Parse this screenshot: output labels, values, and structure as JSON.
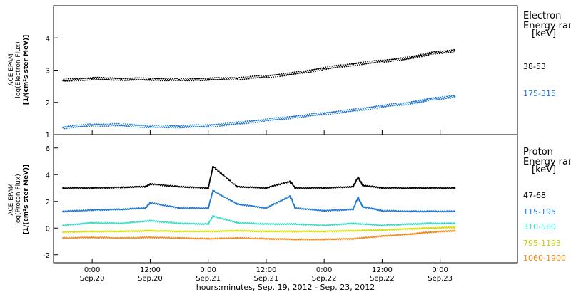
{
  "chart_data": [
    {
      "panel": "electron",
      "type": "scatter",
      "ylabel": [
        "ACE EPAM",
        "log(Electron Flux)",
        "[1/(cm²s ster MeV)]"
      ],
      "ylim": [
        1,
        5
      ],
      "yticks": [
        1,
        2,
        3,
        4
      ],
      "legend_title": [
        "Electron",
        "Energy ran",
        "[keV]"
      ],
      "series": [
        {
          "name": "38-53",
          "color": "#000000",
          "x": [
            -6,
            0,
            6,
            12,
            18,
            24,
            30,
            36,
            42,
            48,
            54,
            60,
            66,
            70,
            75
          ],
          "y": [
            2.68,
            2.74,
            2.72,
            2.72,
            2.7,
            2.72,
            2.74,
            2.8,
            2.9,
            3.05,
            3.18,
            3.28,
            3.38,
            3.52,
            3.6
          ]
        },
        {
          "name": "175-315",
          "color": "#1e78d2",
          "x": [
            -6,
            0,
            6,
            12,
            18,
            24,
            30,
            36,
            42,
            48,
            54,
            60,
            66,
            70,
            75
          ],
          "y": [
            1.22,
            1.3,
            1.3,
            1.25,
            1.25,
            1.27,
            1.35,
            1.45,
            1.55,
            1.65,
            1.75,
            1.88,
            1.98,
            2.1,
            2.18
          ]
        }
      ]
    },
    {
      "panel": "proton",
      "type": "scatter",
      "ylabel": [
        "ACE EPAM",
        "log(Proton Flux)",
        "[1/(cm²s ster MeV)]"
      ],
      "ylim": [
        -2.6,
        7
      ],
      "yticks": [
        -2,
        0,
        2,
        4,
        6
      ],
      "legend_title": [
        "Proton",
        "Energy ran",
        "[keV]"
      ],
      "series": [
        {
          "name": "47-68",
          "color": "#000000",
          "x": [
            -6,
            0,
            6,
            11,
            12,
            18,
            24,
            25,
            30,
            36,
            41,
            42,
            48,
            54,
            55,
            56,
            60,
            66,
            70,
            75
          ],
          "y": [
            3.0,
            3.0,
            3.05,
            3.1,
            3.3,
            3.1,
            3.0,
            4.6,
            3.1,
            3.0,
            3.5,
            3.0,
            3.0,
            3.1,
            3.8,
            3.2,
            3.0,
            3.0,
            3.0,
            3.0
          ]
        },
        {
          "name": "115-195",
          "color": "#1e78d2",
          "x": [
            -6,
            0,
            6,
            11,
            12,
            18,
            24,
            25,
            30,
            36,
            41,
            42,
            48,
            54,
            55,
            56,
            60,
            66,
            70,
            75
          ],
          "y": [
            1.25,
            1.35,
            1.4,
            1.5,
            1.9,
            1.5,
            1.5,
            2.8,
            1.8,
            1.5,
            2.4,
            1.5,
            1.3,
            1.4,
            2.3,
            1.6,
            1.3,
            1.25,
            1.25,
            1.25
          ]
        },
        {
          "name": "310-580",
          "color": "#3dd8c8",
          "x": [
            -6,
            0,
            6,
            12,
            18,
            24,
            25,
            30,
            36,
            42,
            48,
            54,
            60,
            66,
            70,
            75
          ],
          "y": [
            0.2,
            0.4,
            0.35,
            0.55,
            0.35,
            0.3,
            0.9,
            0.4,
            0.3,
            0.3,
            0.2,
            0.35,
            0.2,
            0.3,
            0.35,
            0.35
          ]
        },
        {
          "name": "795-1193",
          "color": "#d4e000",
          "x": [
            -6,
            0,
            6,
            12,
            18,
            24,
            30,
            36,
            42,
            48,
            54,
            60,
            66,
            70,
            75
          ],
          "y": [
            -0.3,
            -0.25,
            -0.25,
            -0.2,
            -0.25,
            -0.25,
            -0.2,
            -0.25,
            -0.25,
            -0.25,
            -0.2,
            -0.15,
            -0.05,
            0.0,
            0.05
          ]
        },
        {
          "name": "1060-1900",
          "color": "#f08a1c",
          "x": [
            -6,
            0,
            6,
            12,
            18,
            24,
            30,
            36,
            42,
            48,
            54,
            60,
            66,
            70,
            75
          ],
          "y": [
            -0.75,
            -0.7,
            -0.75,
            -0.7,
            -0.75,
            -0.8,
            -0.75,
            -0.8,
            -0.85,
            -0.85,
            -0.8,
            -0.6,
            -0.45,
            -0.3,
            -0.2
          ]
        }
      ]
    }
  ],
  "x_axis": {
    "range_hours": [
      -8,
      88
    ],
    "tick_labels": [
      {
        "h": 0,
        "time": "0:00",
        "date": "Sep.20"
      },
      {
        "h": 12,
        "time": "12:00",
        "date": "Sep.20"
      },
      {
        "h": 24,
        "time": "0:00",
        "date": "Sep.21"
      },
      {
        "h": 36,
        "time": "12:00",
        "date": "Sep.21"
      },
      {
        "h": 48,
        "time": "0:00",
        "date": "Sep.22"
      },
      {
        "h": 60,
        "time": "12:00",
        "date": "Sep.22"
      },
      {
        "h": 72,
        "time": "0:00",
        "date": "Sep.23"
      }
    ],
    "label": "hours:minutes, Sep. 19, 2012 - Sep. 23, 2012"
  }
}
